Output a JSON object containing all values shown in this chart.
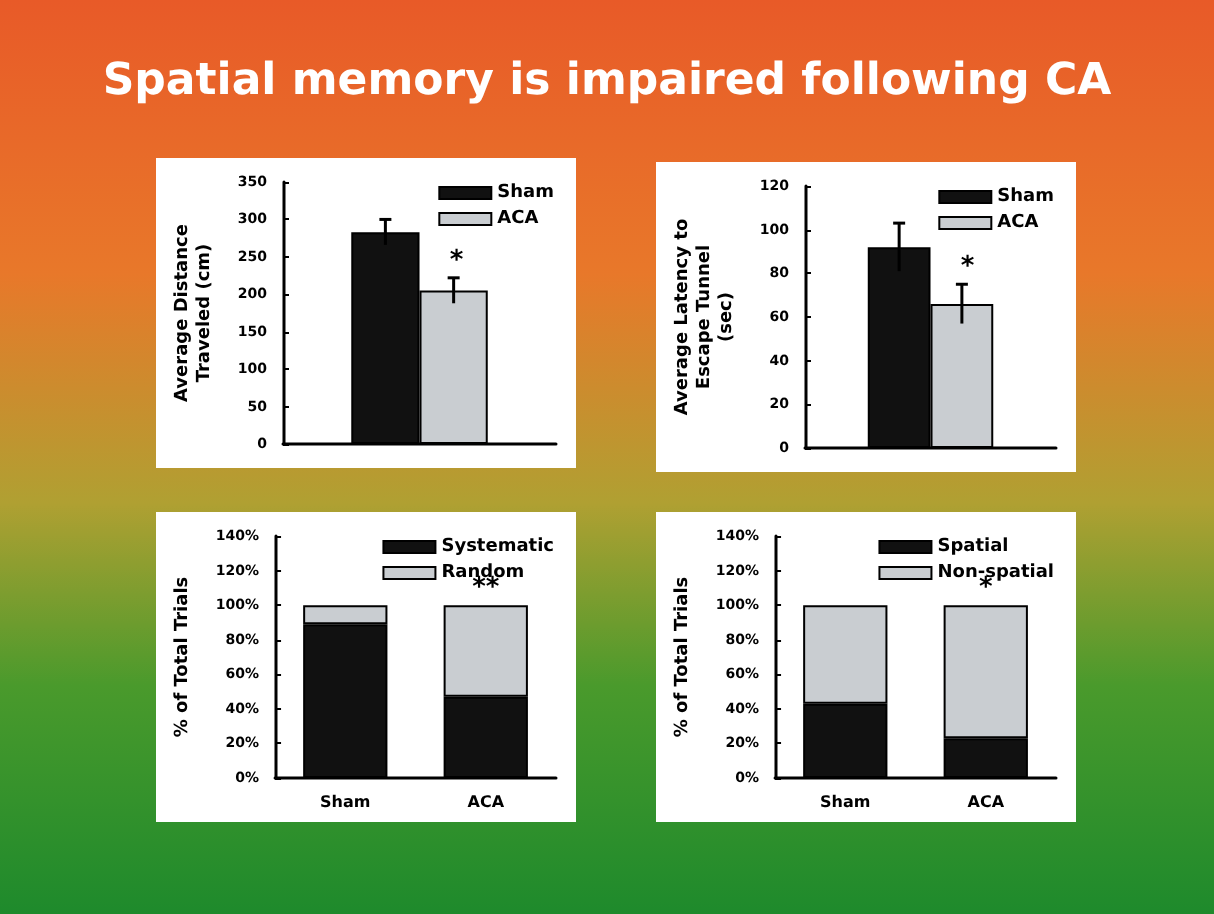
{
  "chart_data": [
    {
      "type": "bar",
      "title": "Spatial memory is impaired following CA",
      "ylabel": "Average Distance Traveled (cm)",
      "categories": [
        null
      ],
      "series": [
        {
          "name": "Sham",
          "color": "#111111",
          "values": [
            283
          ],
          "errors": [
            17
          ]
        },
        {
          "name": "ACA",
          "color": "#c9cdd1",
          "values": [
            205
          ],
          "errors": [
            17
          ]
        }
      ],
      "ylim": [
        0,
        350
      ],
      "yticks": [
        0,
        50,
        100,
        150,
        200,
        250,
        300,
        350
      ],
      "legend": "top right",
      "annotations": [
        "*"
      ]
    },
    {
      "type": "bar",
      "ylabel": "Average Latency to Escape Tunnel (sec)",
      "categories": [
        null
      ],
      "series": [
        {
          "name": "Sham",
          "color": "#111111",
          "values": [
            92
          ],
          "errors": [
            11
          ]
        },
        {
          "name": "ACA",
          "color": "#c9cdd1",
          "values": [
            66
          ],
          "errors": [
            9
          ]
        }
      ],
      "ylim": [
        0,
        120
      ],
      "yticks": [
        0,
        20,
        40,
        60,
        80,
        100,
        120
      ],
      "legend": "top right",
      "annotations": [
        "*"
      ]
    },
    {
      "type": "bar",
      "stacked": true,
      "ylabel": "% of Total Trials",
      "categories": [
        "Sham",
        "ACA"
      ],
      "series": [
        {
          "name": "Systematic",
          "color": "#111111",
          "values": [
            89,
            47
          ]
        },
        {
          "name": "Random",
          "color": "#c9cdd1",
          "values": [
            11,
            53
          ]
        }
      ],
      "ylim": [
        0,
        140
      ],
      "yticks": [
        {
          "value": 0,
          "label": "0%"
        },
        {
          "value": 20,
          "label": "20%"
        },
        {
          "value": 40,
          "label": "40%"
        },
        {
          "value": 60,
          "label": "60%"
        },
        {
          "value": 80,
          "label": "80%"
        },
        {
          "value": 100,
          "label": "100%"
        },
        {
          "value": 120,
          "label": "120%"
        },
        {
          "value": 140,
          "label": "140%"
        }
      ],
      "legend": "top right",
      "annotations": [
        "**"
      ]
    },
    {
      "type": "bar",
      "stacked": true,
      "ylabel": "% of Total Trials",
      "categories": [
        "Sham",
        "ACA"
      ],
      "series": [
        {
          "name": "Spatial",
          "color": "#111111",
          "values": [
            43,
            23
          ]
        },
        {
          "name": "Non-spatial",
          "color": "#c9cdd1",
          "values": [
            57,
            77
          ]
        }
      ],
      "ylim": [
        0,
        140
      ],
      "yticks": [
        {
          "value": 0,
          "label": "0%"
        },
        {
          "value": 20,
          "label": "20%"
        },
        {
          "value": 40,
          "label": "40%"
        },
        {
          "value": 60,
          "label": "60%"
        },
        {
          "value": 80,
          "label": "80%"
        },
        {
          "value": 100,
          "label": "100%"
        },
        {
          "value": 120,
          "label": "120%"
        },
        {
          "value": 140,
          "label": "140%"
        }
      ],
      "legend": "top right",
      "annotations": [
        "*"
      ]
    }
  ]
}
